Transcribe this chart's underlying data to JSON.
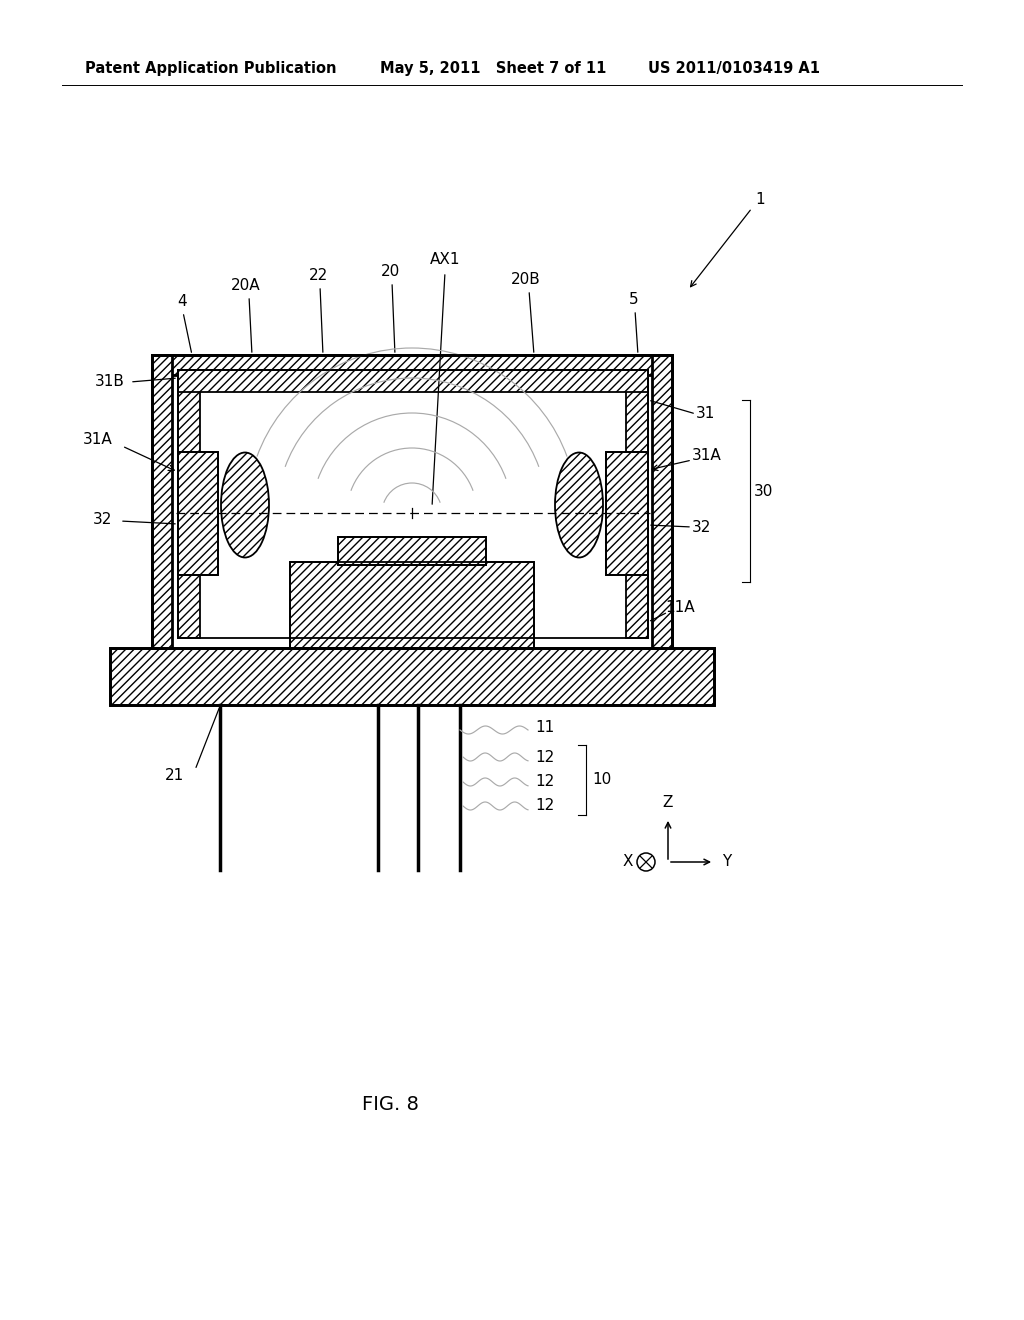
{
  "bg_color": "#ffffff",
  "line_color": "#000000",
  "header_left": "Patent Application Publication",
  "header_mid": "May 5, 2011   Sheet 7 of 11",
  "header_right": "US 2011/0103419 A1",
  "fig_label": "FIG. 8",
  "header_fontsize": 10.5,
  "label_fontsize": 11
}
